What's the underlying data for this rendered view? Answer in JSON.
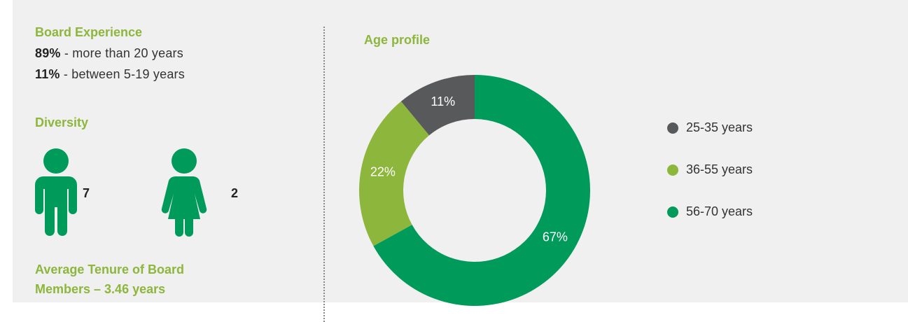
{
  "board_experience": {
    "title": "Board Experience",
    "items": [
      {
        "value": "89%",
        "text": " - more than 20 years"
      },
      {
        "value": "11%",
        "text": " - between 5-19 years"
      }
    ]
  },
  "diversity": {
    "title": "Diversity",
    "male": 7,
    "female": 2
  },
  "tenure": "Average Tenure of Board Members – 3.46 years",
  "chart_data": {
    "type": "pie",
    "donut": true,
    "title": "Age profile",
    "categories": [
      "25-35 years",
      "36-55 years",
      "56-70 years"
    ],
    "values": [
      11,
      22,
      67
    ],
    "value_labels": [
      "11%",
      "22%",
      "67%"
    ],
    "colors": [
      "#58595b",
      "#8cb63c",
      "#009a5b"
    ]
  }
}
